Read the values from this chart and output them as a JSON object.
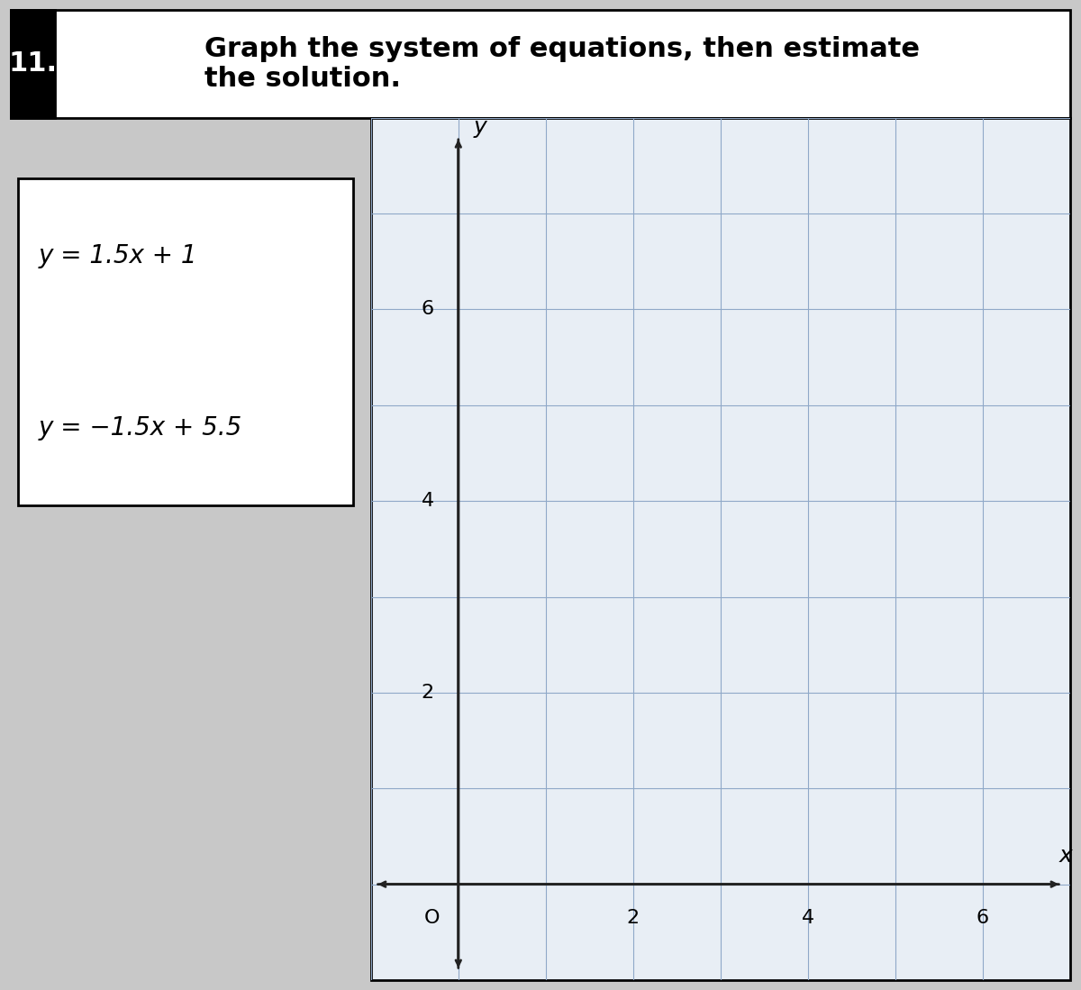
{
  "problem_number": "11.",
  "title": "Graph the system of equations, then estimate\nthe solution.",
  "eq1": "y = 1.5x + 1",
  "eq2": "y = −1.5x + 5.5",
  "eq1_slope": 1.5,
  "eq1_intercept": 1,
  "eq2_slope": -1.5,
  "eq2_intercept": 5.5,
  "xmin": -1,
  "xmax": 7,
  "ymin": -1,
  "ymax": 8,
  "x_ticks": [
    0,
    2,
    4,
    6
  ],
  "y_ticks": [
    2,
    4,
    6
  ],
  "grid_color": "#8fa8c8",
  "background_color": "#c8c8c8",
  "box_bg": "#e8e8e8",
  "graph_bg": "#e8eef5",
  "axes_color": "#222222",
  "title_fontsize": 22,
  "eq_fontsize": 20,
  "tick_fontsize": 16,
  "label_fontsize": 18
}
